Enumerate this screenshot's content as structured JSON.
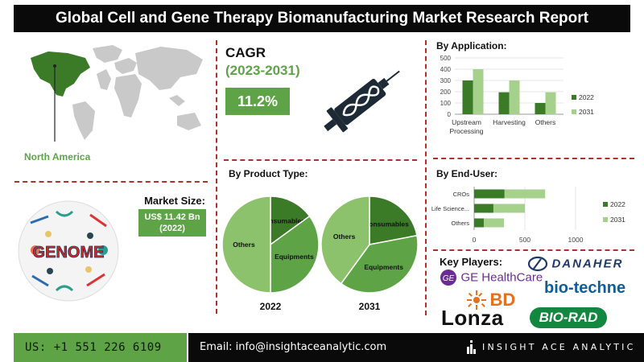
{
  "title": "Global Cell and Gene Therapy Biomanufacturing Market Research Report",
  "region": {
    "label": "North America"
  },
  "cagr": {
    "title": "CAGR",
    "years": "(2023-2031)",
    "value": "11.2%"
  },
  "market_size": {
    "label": "Market Size:",
    "line1": "US$ 11.42 Bn",
    "line2": "(2022)"
  },
  "genome_text": "GENOME",
  "colors": {
    "dark_green": "#3b7a27",
    "mid_green": "#5ea447",
    "light_green": "#a6d18d",
    "pie_light": "#8cc26b",
    "divider": "#b0302c"
  },
  "chart_data": [
    {
      "type": "bar",
      "title": "By Application:",
      "categories": [
        "Upstream Processing",
        "Harvesting",
        "Others"
      ],
      "category_lines": [
        [
          "Upstream",
          "Processing"
        ],
        [
          "Harvesting"
        ],
        [
          "Others"
        ]
      ],
      "ylim": [
        0,
        500
      ],
      "yticks": [
        0,
        100,
        200,
        300,
        400,
        500
      ],
      "series": [
        {
          "name": "2022",
          "values": [
            300,
            195,
            100
          ]
        },
        {
          "name": "2031",
          "values": [
            400,
            300,
            195
          ]
        }
      ],
      "legend": "right"
    },
    {
      "type": "bar",
      "orientation": "horizontal",
      "stacked": true,
      "title": "By End-User:",
      "categories": [
        "CROs",
        "Life Science...",
        "Others"
      ],
      "xlim": [
        0,
        1000
      ],
      "xticks": [
        0,
        500,
        1000
      ],
      "series": [
        {
          "name": "2022",
          "values": [
            300,
            190,
            95
          ]
        },
        {
          "name": "2031",
          "values": [
            400,
            310,
            200
          ]
        }
      ],
      "legend": "right"
    },
    {
      "type": "pie",
      "title": "By Product Type:",
      "subtitle": "2022",
      "slices": [
        {
          "label": "Consumables",
          "value": 15
        },
        {
          "label": "Equipments",
          "value": 35
        },
        {
          "label": "Others",
          "value": 50
        }
      ]
    },
    {
      "type": "pie",
      "subtitle": "2031",
      "slices": [
        {
          "label": "Consumables",
          "value": 22
        },
        {
          "label": "Equipments",
          "value": 38
        },
        {
          "label": "Others",
          "value": 40
        }
      ]
    }
  ],
  "key_players": {
    "title": "Key Players:",
    "names": [
      "DANAHER",
      "GE HealthCare",
      "bio-techne",
      "BD",
      "Lonza",
      "BIO-RAD"
    ]
  },
  "footer": {
    "phone": "US: +1 551 226 6109",
    "email": "Email: info@insightaceanalytic.com",
    "brand": "INSIGHT ACE ANALYTIC"
  }
}
